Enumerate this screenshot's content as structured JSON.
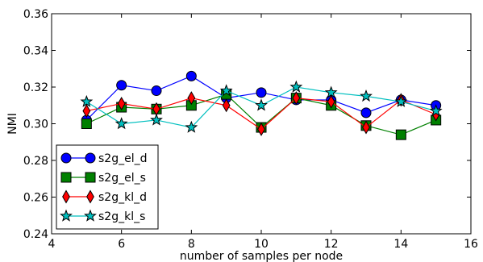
{
  "chart_data": {
    "type": "line",
    "title": "",
    "xlabel": "number of samples per node",
    "ylabel": "NMI",
    "xlim": [
      4,
      16
    ],
    "ylim": [
      0.24,
      0.36
    ],
    "xticks": [
      4,
      6,
      8,
      10,
      12,
      14,
      16
    ],
    "xtick_labels": [
      "4",
      "6",
      "8",
      "10",
      "12",
      "14",
      "16"
    ],
    "yticks": [
      0.24,
      0.26,
      0.28,
      0.3,
      0.32,
      0.34,
      0.36
    ],
    "ytick_labels": [
      "0.24",
      "0.26",
      "0.28",
      "0.30",
      "0.32",
      "0.34",
      "0.36"
    ],
    "grid": false,
    "legend_position": "lower-left",
    "x": [
      5,
      6,
      7,
      8,
      9,
      10,
      11,
      12,
      13,
      14,
      15
    ],
    "series": [
      {
        "name": "s2g_el_d",
        "color": "#0000ff",
        "marker": "circle",
        "values": [
          0.302,
          0.321,
          0.318,
          0.326,
          0.314,
          0.317,
          0.313,
          0.313,
          0.306,
          0.313,
          0.31
        ]
      },
      {
        "name": "s2g_el_s",
        "color": "#008000",
        "marker": "square",
        "values": [
          0.3,
          0.309,
          0.308,
          0.31,
          0.316,
          0.298,
          0.314,
          0.31,
          0.299,
          0.294,
          0.302
        ]
      },
      {
        "name": "s2g_kl_d",
        "color": "#ff0000",
        "marker": "diamond",
        "values": [
          0.307,
          0.311,
          0.308,
          0.314,
          0.31,
          0.297,
          0.314,
          0.312,
          0.298,
          0.313,
          0.305
        ]
      },
      {
        "name": "s2g_kl_s",
        "color": "#00bfbf",
        "marker": "star",
        "values": [
          0.312,
          0.3,
          0.302,
          0.298,
          0.318,
          0.31,
          0.32,
          0.317,
          0.315,
          0.312,
          0.307
        ]
      }
    ]
  }
}
